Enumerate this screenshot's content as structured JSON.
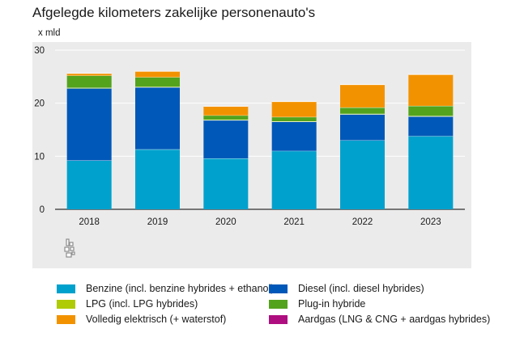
{
  "chart_data": {
    "type": "bar",
    "stacked": true,
    "title": "Afgelegde kilometers zakelijke personenauto's",
    "ylabel": "x mld",
    "xlabel": "",
    "ylim": [
      0,
      30
    ],
    "yticks": [
      0,
      10,
      20,
      30
    ],
    "categories": [
      "2018",
      "2019",
      "2020",
      "2021",
      "2022",
      "2023"
    ],
    "series": [
      {
        "name": "Benzine (incl. benzine hybrides + ethanol)",
        "color": "#00a1cd",
        "values": [
          9.2,
          11.3,
          9.6,
          11.0,
          13.0,
          13.8
        ]
      },
      {
        "name": "Diesel (incl. diesel hybrides)",
        "color": "#0058b8",
        "values": [
          13.6,
          11.7,
          7.2,
          5.5,
          4.9,
          3.7
        ]
      },
      {
        "name": "LPG (incl. LPG hybrides)",
        "color": "#afcb05",
        "values": [
          0.1,
          0.1,
          0.1,
          0.1,
          0.1,
          0.1
        ]
      },
      {
        "name": "Plug-in hybride",
        "color": "#53a31d",
        "values": [
          2.3,
          1.8,
          0.8,
          0.8,
          1.2,
          1.9
        ]
      },
      {
        "name": "Volledig elektrisch (+ waterstof)",
        "color": "#f39200",
        "values": [
          0.4,
          1.1,
          1.7,
          2.9,
          4.3,
          5.9
        ]
      },
      {
        "name": "Aardgas (LNG & CNG + aardgas hybrides)",
        "color": "#af0e80",
        "values": [
          0.0,
          0.0,
          0.0,
          0.0,
          0.0,
          0.0
        ]
      }
    ],
    "legend_position": "bottom",
    "grid": true
  },
  "logo_icon": "cbs-logo-icon"
}
